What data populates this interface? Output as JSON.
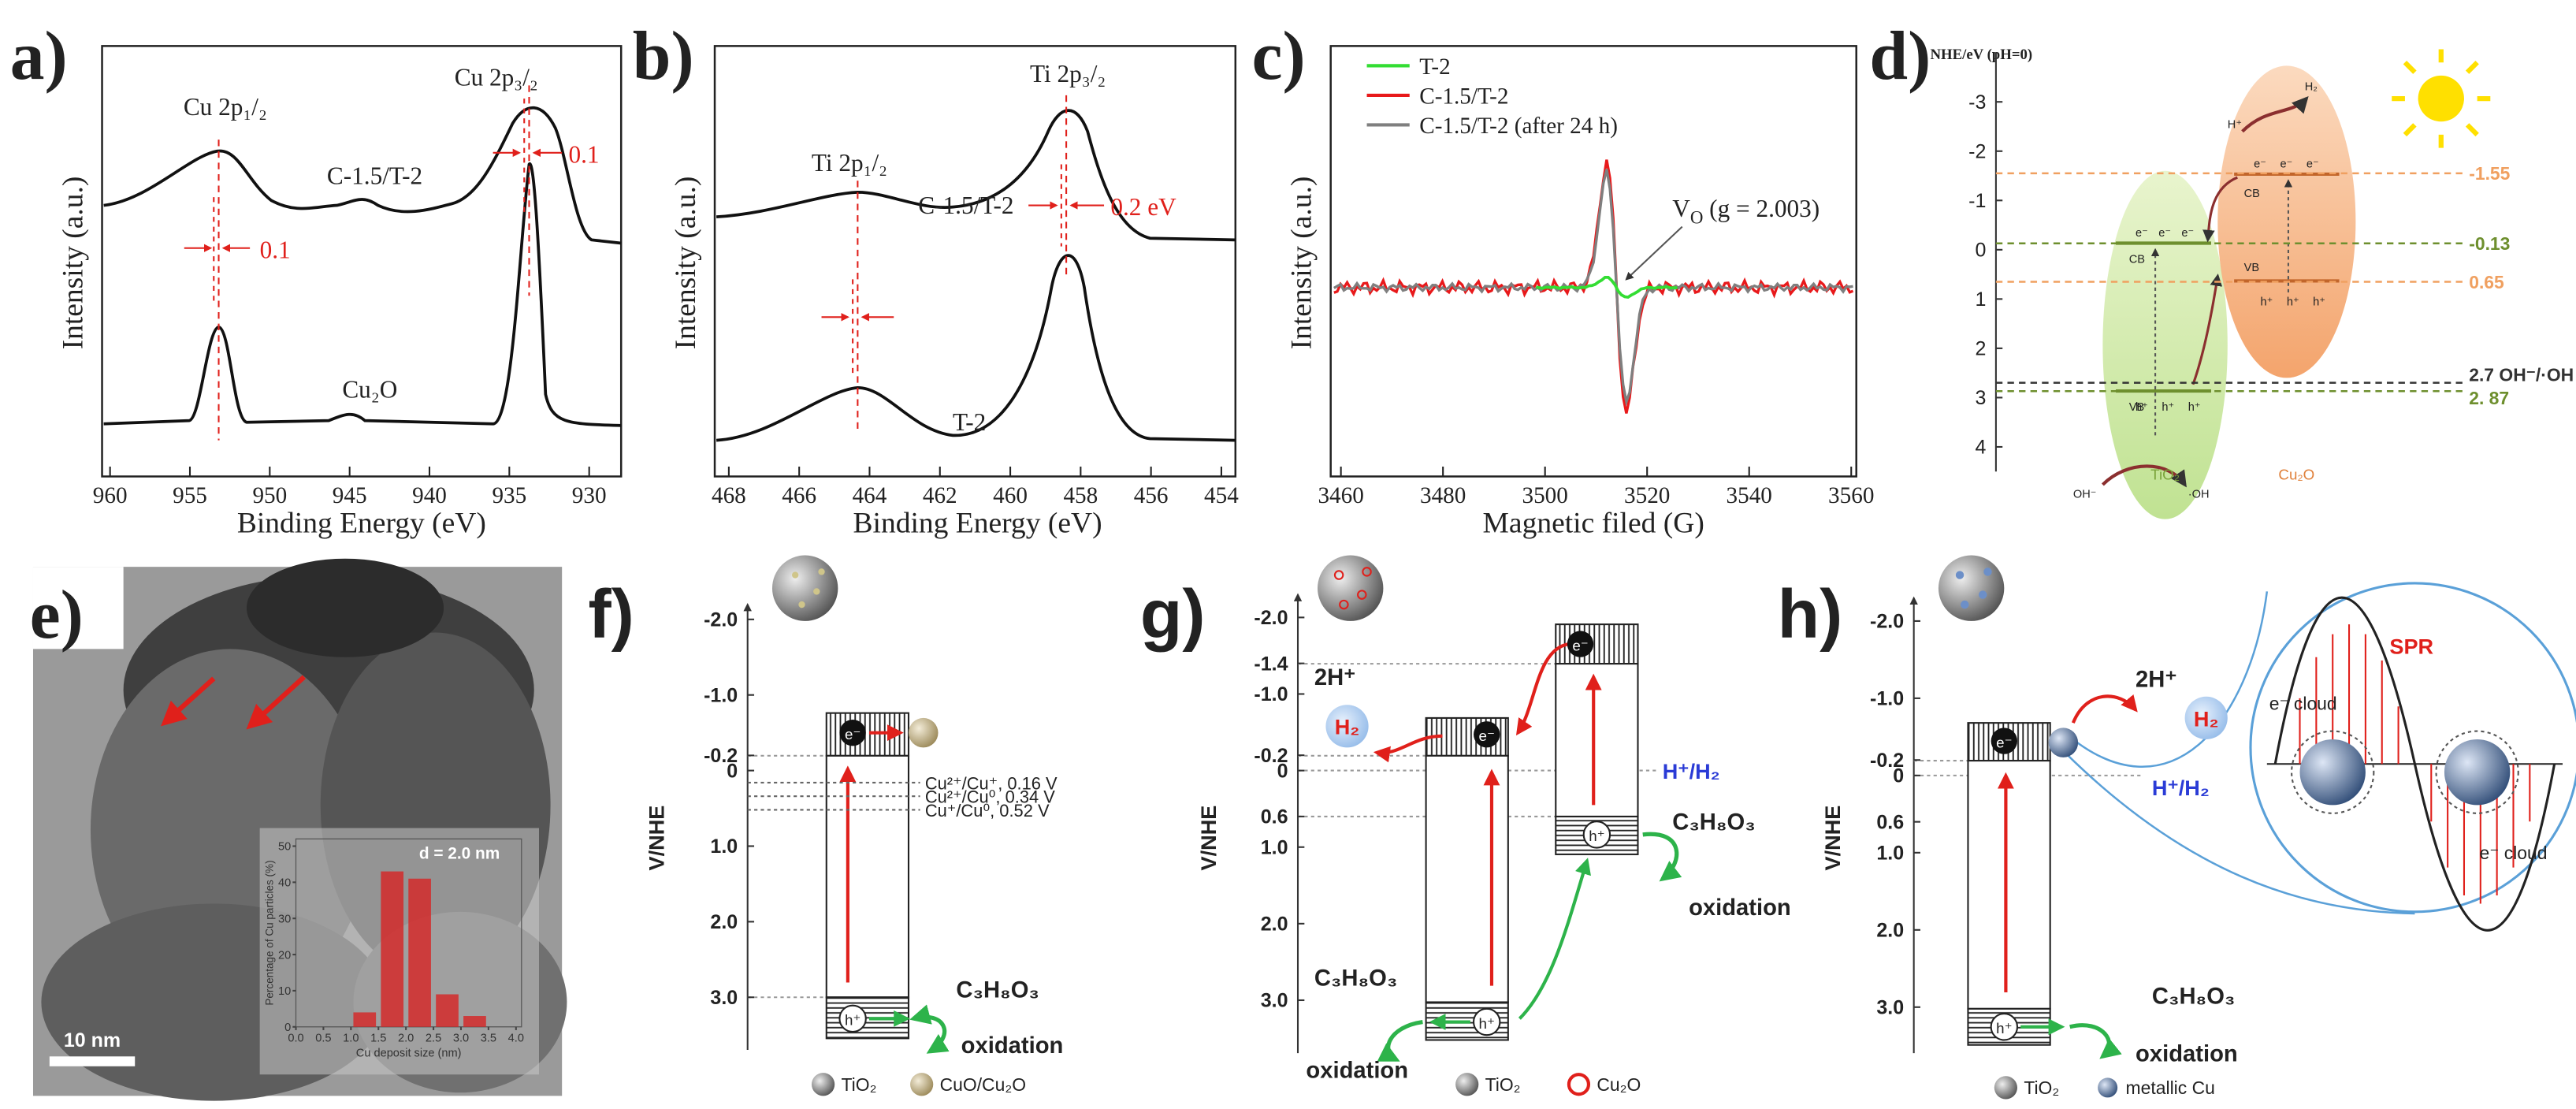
{
  "panels": {
    "a": {
      "label": "a)",
      "xlabel": "Binding Energy (eV)",
      "ylabel": "Intensity (a.u.)",
      "xlim": [
        960.5,
        928
      ],
      "xticks": [
        960,
        955,
        950,
        945,
        940,
        935,
        930
      ],
      "peaks": [
        "Cu 2p₁/₂",
        "Cu 2p₃/₂"
      ],
      "samples": [
        "C-1.5/T-2",
        "Cu₂O"
      ],
      "shifts": [
        "0.1",
        "0.1"
      ]
    },
    "b": {
      "label": "b)",
      "xlabel": "Binding Energy (eV)",
      "ylabel": "Intensity (a.u.)",
      "xlim": [
        468.4,
        453.6
      ],
      "xticks": [
        468,
        466,
        464,
        462,
        460,
        458,
        456,
        454
      ],
      "peaks": [
        "Ti 2p₁/₂",
        "Ti 2p₃/₂"
      ],
      "samples": [
        "C-1.5/T-2",
        "T-2"
      ],
      "shift": "0.2 eV"
    },
    "c": {
      "label": "c)",
      "xlabel": "Magnetic filed (G)",
      "ylabel": "Intensity (a.u.)",
      "xlim": [
        3458,
        3561
      ],
      "xticks": [
        3460,
        3480,
        3500,
        3520,
        3540,
        3560
      ],
      "series": [
        {
          "name": "T-2",
          "color": "#33dd33"
        },
        {
          "name": "C-1.5/T-2",
          "color": "#e8191b"
        },
        {
          "name": "C-1.5/T-2 (after 24 h)",
          "color": "#7f7f7f"
        }
      ],
      "annotation": [
        "V",
        "O",
        " (g = 2.003)"
      ]
    },
    "d": {
      "label": "d)",
      "ylabel": "NHE/eV (pH=0)",
      "ylim": [
        -4,
        4.5
      ],
      "yticks": [
        -3,
        -2,
        -1,
        0,
        1,
        2,
        3,
        4
      ],
      "levels": [
        -1.55,
        -0.13,
        0.65,
        {
          "value": 2.7,
          "label": "2.7 OH⁻/·OH"
        },
        {
          "value": 2.87,
          "label": "2. 87"
        }
      ],
      "level_colors": [
        "#f0a060",
        "#6e8f2e",
        "#f0a060",
        "#333333",
        "#6e8f2e"
      ],
      "materials": [
        "TiO₂",
        "Cu₂O"
      ],
      "band_labels": [
        "CB",
        "VB"
      ],
      "electron": "e⁻",
      "hole": "h⁺",
      "species": [
        "H⁺",
        "H₂",
        "OH⁻",
        "·OH"
      ]
    },
    "e": {
      "label": "e)",
      "scale_bar": "10 nm",
      "histogram": {
        "type": "histogram",
        "bins": [
          1.0,
          1.5,
          2.0,
          2.5,
          3.0,
          3.5
        ],
        "counts": [
          4,
          43,
          41,
          9,
          3
        ],
        "color": "#d42a2a",
        "xlim": [
          0,
          4.1
        ],
        "ylim": [
          0,
          52
        ],
        "xticks": [
          {
            "value": 0,
            "label": "0.0"
          },
          0.5,
          {
            "value": 1,
            "label": "1.0"
          },
          1.5,
          {
            "value": 2,
            "label": "2.0"
          },
          2.5,
          {
            "value": 3,
            "label": "3.0"
          },
          3.5,
          {
            "value": 4,
            "label": "4.0"
          }
        ],
        "yticks": [
          0,
          10,
          20,
          30,
          40,
          50
        ],
        "xlabel": "Cu deposit size (nm)",
        "ylabel": "Percentage of Cu particles (%)",
        "annotation": "d = 2.0 nm"
      }
    },
    "f": {
      "label": "f)",
      "ylabel": "V/NHE",
      "ylim": [
        -2.1,
        3.7
      ],
      "yticks": [
        {
          "value": -2,
          "label": "-2.0"
        },
        {
          "value": -1,
          "label": "-1.0"
        },
        -0.2,
        0,
        {
          "value": 1,
          "label": "1.0"
        },
        {
          "value": 2,
          "label": "2.0"
        },
        {
          "value": 3,
          "label": "3.0"
        }
      ],
      "couples": [
        {
          "value": 0.16,
          "label": "Cu²⁺/Cu⁺, 0.16 V"
        },
        {
          "value": 0.34,
          "label": "Cu²⁺/Cu⁰, 0.34 V"
        },
        {
          "value": 0.52,
          "label": "Cu⁺/Cu⁰, 0.52 V"
        }
      ],
      "electron": "e⁻",
      "hole": "h⁺",
      "reactant": "C₃H₈O₃",
      "product": "oxidation",
      "legend": [
        "TiO₂",
        "CuO/Cu₂O"
      ]
    },
    "g": {
      "label": "g)",
      "ylabel": "V/NHE",
      "ylim": [
        -2.2,
        3.7
      ],
      "yticks": [
        {
          "value": -2,
          "label": "-2.0"
        },
        -1.4,
        {
          "value": -1,
          "label": "-1.0"
        },
        -0.2,
        0,
        0.6,
        {
          "value": 1,
          "label": "1.0"
        },
        {
          "value": 2,
          "label": "2.0"
        },
        {
          "value": 3,
          "label": "3.0"
        }
      ],
      "couple": "H⁺/H₂",
      "protons": "2H⁺",
      "hydrogen": "H₂",
      "electron": "e⁻",
      "hole": "h⁺",
      "reactant": "C₃H₈O₃",
      "product": "oxidation",
      "legend": [
        "TiO₂",
        "Cu₂O"
      ]
    },
    "h": {
      "label": "h)",
      "ylabel": "V/NHE",
      "ylim": [
        -2.2,
        3.6
      ],
      "yticks": [
        {
          "value": -2,
          "label": "-2.0"
        },
        {
          "value": -1,
          "label": "-1.0"
        },
        -0.2,
        0,
        0.6,
        {
          "value": 1,
          "label": "1.0"
        },
        {
          "value": 2,
          "label": "2.0"
        },
        {
          "value": 3,
          "label": "3.0"
        }
      ],
      "couple": "H⁺/H₂",
      "protons": "2H⁺",
      "hydrogen": "H₂",
      "electron": "e⁻",
      "hole": "h⁺",
      "reactant": "C₃H₈O₃",
      "product": "oxidation",
      "spr": "SPR",
      "cloud": "e⁻ cloud",
      "legend": [
        "TiO₂",
        "metallic Cu"
      ]
    }
  }
}
